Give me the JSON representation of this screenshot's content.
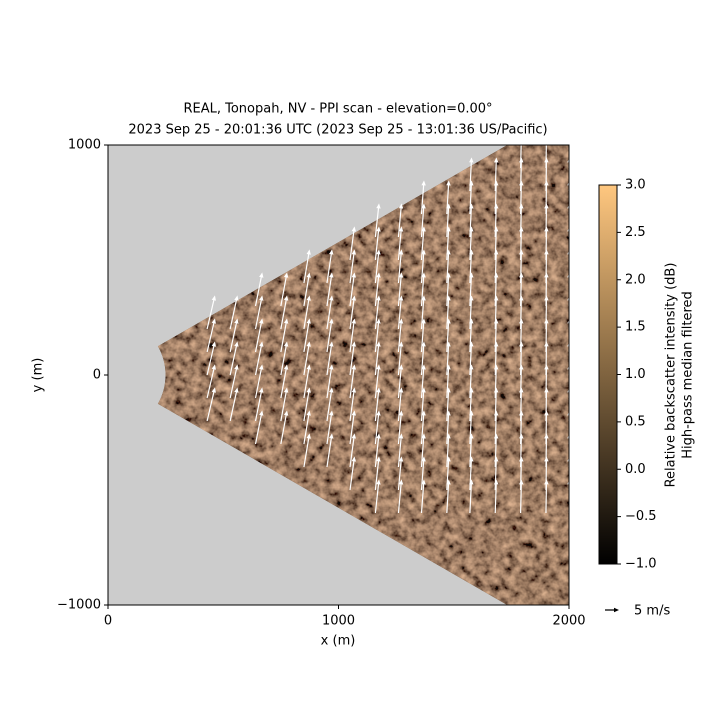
{
  "chart_data": {
    "type": "ppi",
    "title": "REAL, Tonopah, NV - PPI scan - elevation=0.00°",
    "subtitle": "2023 Sep 25 - 20:01:36 UTC (2023 Sep 25 - 13:01:36 US/Pacific)",
    "x_label": "x (m)",
    "y_label": "y (m)",
    "xlim": [
      0,
      2000
    ],
    "xticks": [
      0,
      1000,
      2000
    ],
    "ylim": [
      -1000,
      1000
    ],
    "yticks": [
      {
        "value": -1000,
        "label": "−1000"
      },
      0,
      1000
    ],
    "colorbar": {
      "label": "Relative backscatter intensity (dB)",
      "sublabel": "High-pass median filtered",
      "lim": [
        -1,
        3
      ],
      "ticks": [
        {
          "value": -1,
          "label": "−1.0"
        },
        {
          "value": -0.5,
          "label": "−0.5"
        },
        {
          "value": 0,
          "label": "0.0"
        },
        {
          "value": 0.5,
          "label": "0.5"
        },
        {
          "value": 1,
          "label": "1.0"
        },
        {
          "value": 1.5,
          "label": "1.5"
        },
        {
          "value": 2,
          "label": "2.0"
        },
        {
          "value": 2.5,
          "label": "2.5"
        },
        {
          "value": 3,
          "label": "3.0"
        }
      ],
      "colors": [
        "#000000",
        "#ffc77f"
      ]
    },
    "quiver": {
      "color": "#ffffff",
      "x": [
        430,
        530,
        640,
        750,
        850,
        950,
        1050,
        1160,
        1260,
        1360,
        1470,
        1570,
        1680,
        1790,
        1900,
        2000
      ],
      "y": [
        -600,
        -500,
        -400,
        -300,
        -200,
        -100,
        0,
        100,
        200,
        300,
        400,
        500,
        600,
        700,
        800,
        900
      ],
      "u": [
        2.8,
        2.6,
        2.4,
        2.2,
        2.0,
        1.8,
        1.6,
        1.3,
        1.1,
        0.9,
        0.7,
        0.6,
        0.4,
        0.3,
        0.2,
        0.2
      ],
      "v": [
        12,
        12,
        12,
        12,
        12,
        12,
        12,
        12,
        12,
        12,
        12,
        12,
        12,
        12,
        12,
        12
      ],
      "key": {
        "value": 5,
        "label": "5 m/s"
      }
    }
  }
}
